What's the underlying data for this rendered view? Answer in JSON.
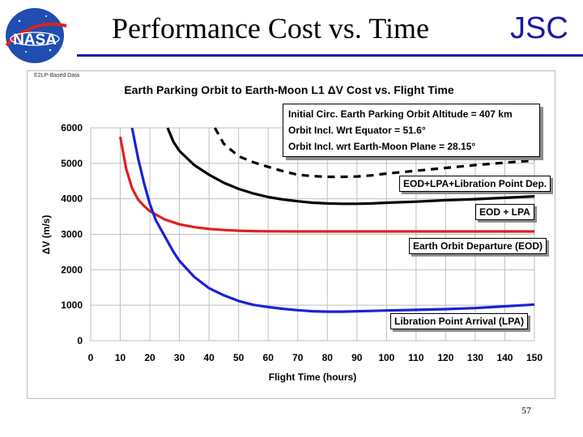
{
  "slide": {
    "title": "Performance Cost vs. Time",
    "org": "JSC",
    "logo_text": "NASA",
    "page_number": "57",
    "source_note": "E2LP-Based Data"
  },
  "colors": {
    "eod_lpa_dep": "#000000",
    "eod_lpa": "#000000",
    "eod": "#e02020",
    "lpa": "#1a22d6",
    "grid": "#bfbfbf",
    "plot_bg": "#ffffff",
    "title_rule": "#1a1aa6"
  },
  "parameters": [
    "Initial Circ. Earth Parking Orbit Altitude = 407 km",
    "Orbit Incl. Wrt Equator = 51.6°",
    "Orbit Incl. wrt Earth-Moon Plane = 28.15°"
  ],
  "chart_data": {
    "type": "line",
    "title": "Earth Parking Orbit to Earth-Moon L1 ΔV Cost vs. Flight Time",
    "xlabel": "Flight Time  (hours)",
    "ylabel": "ΔV  (m/s)",
    "xlim": [
      0,
      150
    ],
    "ylim": [
      0,
      6000
    ],
    "xticks": [
      0,
      10,
      20,
      30,
      40,
      50,
      60,
      70,
      80,
      90,
      100,
      110,
      120,
      130,
      140,
      150
    ],
    "yticks": [
      0,
      1000,
      2000,
      3000,
      4000,
      5000,
      6000
    ],
    "grid": true,
    "series": [
      {
        "name": "EOD+LPA+Libration Point Dep.",
        "style": "dashed",
        "x": [
          42,
          45,
          50,
          55,
          60,
          65,
          70,
          75,
          80,
          85,
          90,
          95,
          100,
          110,
          120,
          130,
          140,
          150
        ],
        "y": [
          6000,
          5550,
          5200,
          5030,
          4900,
          4780,
          4680,
          4640,
          4620,
          4620,
          4630,
          4660,
          4710,
          4790,
          4870,
          4950,
          5020,
          5080
        ]
      },
      {
        "name": "EOD + LPA",
        "style": "solid",
        "x": [
          26,
          28,
          30,
          35,
          40,
          45,
          50,
          55,
          60,
          65,
          70,
          75,
          80,
          85,
          90,
          95,
          100,
          110,
          120,
          130,
          140,
          150
        ],
        "y": [
          6000,
          5600,
          5350,
          4950,
          4680,
          4450,
          4280,
          4150,
          4050,
          3980,
          3930,
          3890,
          3870,
          3860,
          3860,
          3870,
          3890,
          3920,
          3960,
          3990,
          4030,
          4070
        ]
      },
      {
        "name": "Earth Orbit Departure (EOD)",
        "style": "solid",
        "x": [
          10,
          12,
          14,
          16,
          18,
          20,
          25,
          30,
          35,
          40,
          45,
          50,
          55,
          60,
          70,
          80,
          100,
          120,
          150
        ],
        "y": [
          5750,
          4850,
          4300,
          3980,
          3800,
          3650,
          3420,
          3280,
          3200,
          3150,
          3120,
          3100,
          3090,
          3085,
          3080,
          3080,
          3080,
          3080,
          3080
        ]
      },
      {
        "name": "Libration Point Arrival (LPA)",
        "style": "solid",
        "x": [
          14,
          16,
          18,
          20,
          22,
          25,
          28,
          30,
          35,
          40,
          45,
          50,
          55,
          60,
          65,
          70,
          75,
          80,
          85,
          90,
          95,
          100,
          110,
          120,
          130,
          140,
          150
        ],
        "y": [
          6000,
          5150,
          4450,
          3850,
          3400,
          2950,
          2500,
          2250,
          1800,
          1480,
          1280,
          1120,
          1010,
          950,
          900,
          860,
          830,
          820,
          820,
          830,
          840,
          850,
          870,
          890,
          920,
          970,
          1020
        ]
      }
    ]
  }
}
